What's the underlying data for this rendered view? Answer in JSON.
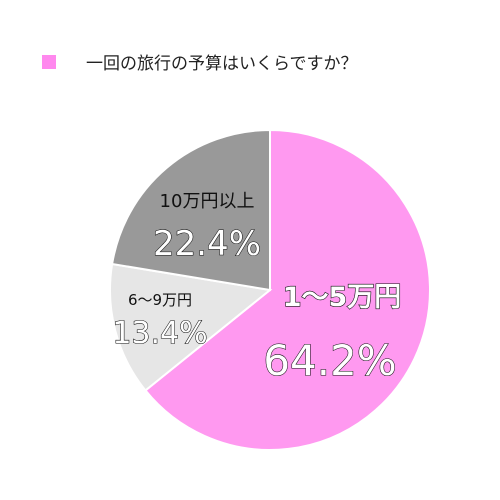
{
  "chart_data": {
    "type": "pie",
    "title": "一回の旅行の予算はいくらですか？",
    "title_marker_color": "#ff88ee",
    "slices": [
      {
        "label": "1～5万円",
        "value": 64.2,
        "display": "64.2%",
        "color": "#ff99f0"
      },
      {
        "label": "6～9万円",
        "value": 13.4,
        "display": "13.4%",
        "color": "#e6e6e6"
      },
      {
        "label": "10万円以上",
        "value": 22.4,
        "display": "22.4%",
        "color": "#999999"
      }
    ],
    "start_angle_deg": 0,
    "direction": "clockwise",
    "stroke_color": "#ffffff"
  }
}
